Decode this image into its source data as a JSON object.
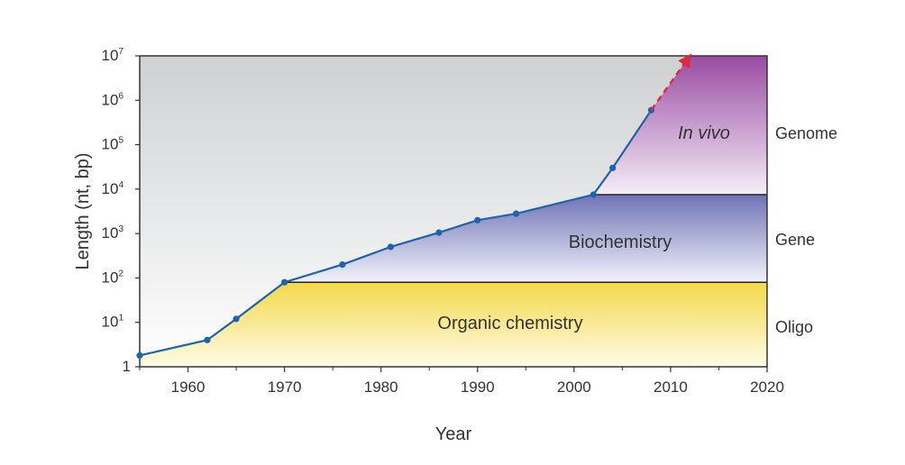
{
  "chart_data": {
    "type": "line",
    "xlabel": "Year",
    "ylabel": "Length (nt, bp)",
    "xlim": [
      1955,
      2020
    ],
    "ylim": [
      1,
      10000000
    ],
    "y_scale": "log",
    "x_ticks": [
      "1960",
      "1970",
      "1980",
      "1990",
      "2000",
      "2010",
      "2020"
    ],
    "y_ticks": [
      {
        "base": "1",
        "exp": ""
      },
      {
        "base": "10",
        "exp": "1"
      },
      {
        "base": "10",
        "exp": "2"
      },
      {
        "base": "10",
        "exp": "3"
      },
      {
        "base": "10",
        "exp": "4"
      },
      {
        "base": "10",
        "exp": "5"
      },
      {
        "base": "10",
        "exp": "6"
      },
      {
        "base": "10",
        "exp": "7"
      }
    ],
    "series": [
      {
        "x": [
          1955,
          1962,
          1965,
          1970,
          1976,
          1981,
          1986,
          1990,
          1994,
          2002,
          2004,
          2008
        ],
        "y": [
          1.8,
          4,
          12,
          80,
          200,
          500,
          1050,
          2000,
          2800,
          7500,
          30000,
          600000
        ]
      }
    ],
    "projection": {
      "x": [
        2008,
        2012
      ],
      "y": [
        600000,
        10000000
      ]
    },
    "regions": [
      {
        "label": "Organic chemistry",
        "x_start": 1970,
        "y_from": 1,
        "y_to": 80
      },
      {
        "label": "Biochemistry",
        "x_start": 1970,
        "y_from": 80,
        "y_to": 7500
      },
      {
        "label": "In vivo",
        "x_start": 2002,
        "y_from": 7500,
        "y_to": 10000000
      }
    ],
    "side_labels": [
      "Genome",
      "Gene",
      "Oligo"
    ],
    "grid": false
  },
  "colors": {
    "line": "#1f63ad",
    "projection": "#e0283e",
    "background_top": "#cfd0d2",
    "background_bottom": "#ffffff",
    "organic_top": "#f4d84a",
    "biochem_top": "#6f73b6",
    "invivo_top": "#9a4ba3"
  }
}
